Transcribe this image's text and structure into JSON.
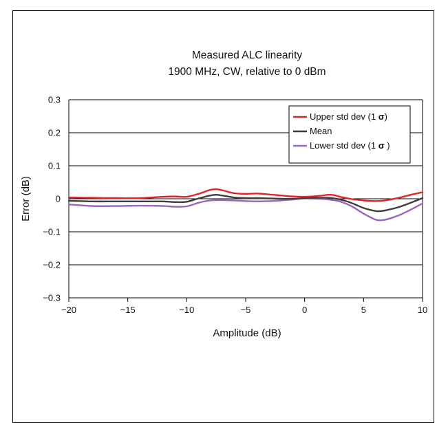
{
  "chart_data": {
    "type": "line",
    "title": [
      "Measured ALC linearity",
      "1900 MHz, CW, relative to 0 dBm"
    ],
    "xlabel": "Amplitude (dB)",
    "ylabel": "Error (dB)",
    "xlim": [
      -20,
      10
    ],
    "ylim": [
      -0.3,
      0.3
    ],
    "x_ticks": [
      -20,
      -15,
      -10,
      -5,
      0,
      5,
      10
    ],
    "x_tick_labels": [
      "−20",
      "−15",
      "−10",
      "−5",
      "0",
      "5",
      "10"
    ],
    "y_ticks": [
      0.3,
      0.2,
      0.1,
      0,
      -0.1,
      -0.2,
      -0.3
    ],
    "y_tick_labels": [
      "0.3",
      "0.2",
      "0.1",
      "0",
      "−0.1",
      "−0.2",
      "−0.3"
    ],
    "grid": "horizontal",
    "legend_position": "top-right",
    "series": [
      {
        "name_parts": [
          "Upper std dev (1 ",
          "σ",
          ")"
        ],
        "color": "#e0242b",
        "x": [
          -20,
          -18,
          -16,
          -14,
          -12,
          -11,
          -10,
          -9,
          -8,
          -7.5,
          -7,
          -6,
          -5,
          -4,
          -3,
          -2,
          -1,
          0,
          1,
          2,
          2.5,
          3,
          4,
          5,
          6,
          7,
          8,
          9,
          10
        ],
        "y": [
          0.004,
          0.003,
          0.002,
          0.002,
          0.006,
          0.007,
          0.006,
          0.015,
          0.027,
          0.029,
          0.026,
          0.017,
          0.015,
          0.016,
          0.013,
          0.01,
          0.007,
          0.006,
          0.008,
          0.012,
          0.011,
          0.006,
          -0.001,
          -0.005,
          -0.007,
          -0.004,
          0.003,
          0.012,
          0.02
        ]
      },
      {
        "name_parts": [
          "Mean"
        ],
        "color": "#3d3d3d",
        "x": [
          -20,
          -18,
          -16,
          -14,
          -12,
          -11,
          -10,
          -9,
          -8,
          -7.5,
          -7,
          -6,
          -5,
          -4,
          -3,
          -2,
          -1,
          0,
          1,
          2,
          3,
          4,
          5,
          6,
          6.5,
          7,
          8,
          9,
          10
        ],
        "y": [
          -0.006,
          -0.008,
          -0.008,
          -0.008,
          -0.008,
          -0.01,
          -0.009,
          0.001,
          0.01,
          0.012,
          0.01,
          0.004,
          0.002,
          0.002,
          0.001,
          0.0,
          0.0,
          0.002,
          0.003,
          0.003,
          -0.002,
          -0.013,
          -0.028,
          -0.037,
          -0.037,
          -0.034,
          -0.025,
          -0.012,
          0.002
        ]
      },
      {
        "name_parts": [
          "Lower std dev (1 ",
          "σ",
          " )"
        ],
        "color": "#9966bb",
        "x": [
          -20,
          -18,
          -16,
          -14,
          -12,
          -11,
          -10,
          -9,
          -8,
          -7,
          -6,
          -5,
          -4,
          -3,
          -2,
          -1,
          0,
          1,
          2,
          3,
          4,
          5,
          6,
          6.5,
          7,
          8,
          9,
          10
        ],
        "y": [
          -0.017,
          -0.022,
          -0.022,
          -0.021,
          -0.022,
          -0.024,
          -0.023,
          -0.012,
          -0.005,
          -0.004,
          -0.005,
          -0.007,
          -0.008,
          -0.007,
          -0.005,
          -0.002,
          0.001,
          0.0,
          -0.002,
          -0.008,
          -0.023,
          -0.045,
          -0.063,
          -0.065,
          -0.062,
          -0.05,
          -0.033,
          -0.014
        ]
      }
    ]
  }
}
